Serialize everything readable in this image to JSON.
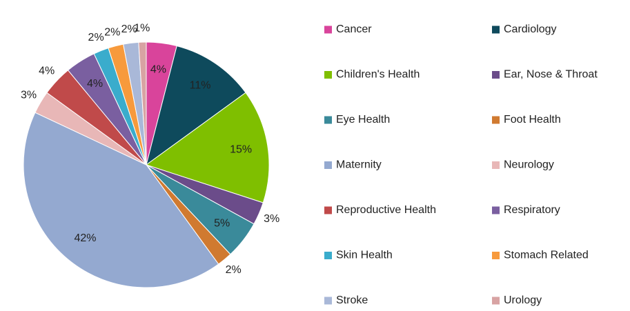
{
  "chart_data": {
    "type": "pie",
    "categories": [
      "Cancer",
      "Cardiology",
      "Children's Health",
      "Ear, Nose & Throat",
      "Eye Health",
      "Foot Health",
      "Maternity",
      "Neurology",
      "Reproductive Health",
      "Respiratory",
      "Skin Health",
      "Stomach Related",
      "Stroke",
      "Urology"
    ],
    "values": [
      4,
      11,
      15,
      3,
      5,
      2,
      42,
      3,
      4,
      4,
      2,
      2,
      2,
      1
    ],
    "value_labels": [
      "4%",
      "11%",
      "15%",
      "3%",
      "5%",
      "2%",
      "42%",
      "3%",
      "4%",
      "4%",
      "2%",
      "2%",
      "2%",
      "1%"
    ],
    "colors": [
      "#d9449b",
      "#0e4a5c",
      "#7fbf00",
      "#6b4c8a",
      "#3a8a9a",
      "#d07a30",
      "#94a9d0",
      "#e8b7b7",
      "#c04a4a",
      "#7a5fa0",
      "#3aaccc",
      "#f79a3c",
      "#a9b8d8",
      "#d8a3a3"
    ],
    "legend": "right"
  }
}
